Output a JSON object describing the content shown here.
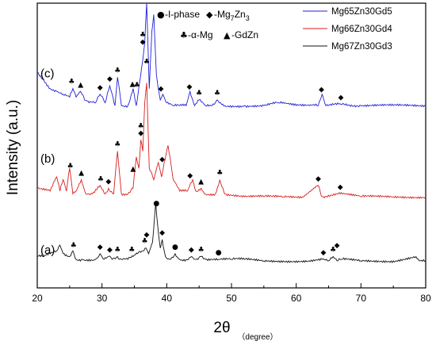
{
  "chart_data": {
    "type": "line",
    "xlabel": "2θ",
    "xlabel_unit": "（degree）",
    "ylabel": "Intensity (a.u.)",
    "xlim": [
      20,
      80
    ],
    "xticks": [
      "20",
      "30",
      "40",
      "50",
      "60",
      "70",
      "80"
    ],
    "grid": false,
    "legend_position": "top-right",
    "phase_legend": [
      {
        "symbol": "●",
        "label": "-I-phase"
      },
      {
        "symbol": "◆",
        "label": "-Mg7Zn3"
      },
      {
        "symbol": "♣",
        "label": "-α-Mg"
      },
      {
        "symbol": "▲",
        "label": "-GdZn"
      }
    ],
    "series": [
      {
        "name": "Mg65Zn30Gd5",
        "curve_label": "(c)",
        "color": "#1f1fd9",
        "baseline": 0.74,
        "x": [
          20,
          21,
          22,
          23,
          24,
          25,
          25.5,
          26,
          26.7,
          27.3,
          28,
          29,
          29.7,
          30.5,
          31.2,
          32,
          32.4,
          33,
          34,
          34.8,
          35.3,
          35.8,
          36.3,
          36.6,
          36.9,
          37.3,
          37.7,
          38.0,
          38.4,
          39,
          39.4,
          40,
          41,
          42,
          43,
          43.6,
          44.3,
          45,
          46,
          47,
          47.8,
          49,
          52,
          55,
          57.3,
          60,
          62,
          63.4,
          64.0,
          64.6,
          66.9,
          70,
          75,
          80
        ],
        "y": [
          0.76,
          0.73,
          0.7,
          0.69,
          0.68,
          0.67,
          0.7,
          0.67,
          0.69,
          0.66,
          0.65,
          0.65,
          0.68,
          0.65,
          0.71,
          0.64,
          0.74,
          0.64,
          0.64,
          0.7,
          0.64,
          0.72,
          0.8,
          0.86,
          1.0,
          0.7,
          0.9,
          0.96,
          0.75,
          0.66,
          0.68,
          0.65,
          0.64,
          0.64,
          0.64,
          0.69,
          0.64,
          0.66,
          0.64,
          0.64,
          0.66,
          0.64,
          0.64,
          0.64,
          0.65,
          0.64,
          0.64,
          0.64,
          0.68,
          0.64,
          0.645,
          0.64,
          0.64,
          0.64
        ]
      },
      {
        "name": "Mg66Zn30Gd4",
        "curve_label": "(b)",
        "color": "#d91f1f",
        "baseline": 0.44,
        "x": [
          20,
          22,
          23,
          23.5,
          24,
          24.5,
          25,
          25.5,
          26,
          26.8,
          27.5,
          28.5,
          29.7,
          30.5,
          31,
          31.8,
          32.4,
          33,
          34,
          34.8,
          35.3,
          35.7,
          36.0,
          36.3,
          36.6,
          36.9,
          37.3,
          38,
          38.7,
          39.2,
          39.6,
          40.2,
          41,
          42,
          43.2,
          44,
          44.5,
          45.3,
          46,
          47.5,
          48.2,
          49,
          52,
          55,
          58,
          61,
          63.4,
          64,
          66.8,
          70,
          75,
          80
        ],
        "y": [
          0.35,
          0.34,
          0.39,
          0.34,
          0.38,
          0.34,
          0.42,
          0.33,
          0.34,
          0.38,
          0.33,
          0.33,
          0.36,
          0.33,
          0.35,
          0.33,
          0.48,
          0.33,
          0.33,
          0.35,
          0.46,
          0.42,
          0.52,
          0.48,
          0.65,
          0.72,
          0.42,
          0.38,
          0.44,
          0.39,
          0.44,
          0.5,
          0.38,
          0.34,
          0.34,
          0.38,
          0.34,
          0.35,
          0.33,
          0.33,
          0.38,
          0.33,
          0.32,
          0.32,
          0.32,
          0.32,
          0.36,
          0.32,
          0.33,
          0.32,
          0.32,
          0.32
        ]
      },
      {
        "name": "Mg67Zn30Gd3",
        "curve_label": "(a)",
        "color": "#111111",
        "baseline": 0.12,
        "x": [
          20,
          21,
          22,
          23,
          23.5,
          24,
          25,
          25.5,
          26,
          27,
          28,
          29,
          29.7,
          30.3,
          31,
          31.6,
          32.4,
          33,
          34,
          34.8,
          35.5,
          36.3,
          36.8,
          37.2,
          37.8,
          38.3,
          38.6,
          39.0,
          39.3,
          39.8,
          40.5,
          41.3,
          42,
          43,
          43.8,
          44.5,
          45.3,
          46,
          47,
          48,
          50,
          52,
          55,
          58,
          60,
          62,
          64,
          65,
          65.7,
          66.3,
          67,
          70,
          75,
          78.5,
          79,
          80
        ],
        "y": [
          0.11,
          0.11,
          0.12,
          0.13,
          0.15,
          0.12,
          0.11,
          0.13,
          0.1,
          0.1,
          0.1,
          0.1,
          0.12,
          0.1,
          0.11,
          0.1,
          0.11,
          0.1,
          0.1,
          0.11,
          0.12,
          0.13,
          0.14,
          0.12,
          0.16,
          0.3,
          0.22,
          0.14,
          0.17,
          0.11,
          0.1,
          0.12,
          0.1,
          0.1,
          0.11,
          0.1,
          0.11,
          0.1,
          0.1,
          0.1,
          0.1,
          0.1,
          0.095,
          0.095,
          0.095,
          0.095,
          0.1,
          0.095,
          0.11,
          0.095,
          0.1,
          0.095,
          0.095,
          0.11,
          0.095,
          0.095
        ]
      }
    ],
    "markers": [
      {
        "series": 0,
        "x": 25.3,
        "symbol": "♣"
      },
      {
        "series": 0,
        "x": 26.7,
        "symbol": "▲"
      },
      {
        "series": 0,
        "x": 29.7,
        "symbol": "◆"
      },
      {
        "series": 0,
        "x": 31.2,
        "symbol": "◆"
      },
      {
        "series": 0,
        "x": 32.4,
        "symbol": "♣"
      },
      {
        "series": 0,
        "x": 34.7,
        "symbol": "▲"
      },
      {
        "series": 0,
        "x": 35.4,
        "symbol": "♣"
      },
      {
        "series": 0,
        "x": 36.3,
        "symbol": "◆"
      },
      {
        "series": 0,
        "x": 36.3,
        "symbol": "♣",
        "stack": 1
      },
      {
        "series": 0,
        "x": 36.6,
        "symbol": "▲",
        "stack": 2
      },
      {
        "series": 0,
        "x": 36.9,
        "symbol": "♣",
        "stack": 3
      },
      {
        "series": 0,
        "x": 39.1,
        "symbol": "◆"
      },
      {
        "series": 0,
        "x": 43.5,
        "symbol": "◆"
      },
      {
        "series": 0,
        "x": 45.0,
        "symbol": "♣"
      },
      {
        "series": 0,
        "x": 47.8,
        "symbol": "♣"
      },
      {
        "series": 0,
        "x": 63.9,
        "symbol": "◆"
      },
      {
        "series": 0,
        "x": 66.9,
        "symbol": "◆"
      },
      {
        "series": 1,
        "x": 25.1,
        "symbol": "♣"
      },
      {
        "series": 1,
        "x": 26.8,
        "symbol": "▲"
      },
      {
        "series": 1,
        "x": 29.8,
        "symbol": "♣"
      },
      {
        "series": 1,
        "x": 31.0,
        "symbol": "◆"
      },
      {
        "series": 1,
        "x": 32.4,
        "symbol": "♣"
      },
      {
        "series": 1,
        "x": 34.8,
        "symbol": "▲"
      },
      {
        "series": 1,
        "x": 36.0,
        "symbol": "◆"
      },
      {
        "series": 1,
        "x": 36.0,
        "symbol": "♣",
        "stack": 1
      },
      {
        "series": 1,
        "x": 36.9,
        "symbol": "♣",
        "stack": 2
      },
      {
        "series": 1,
        "x": 39.3,
        "symbol": "◆"
      },
      {
        "series": 1,
        "x": 43.6,
        "symbol": "◆"
      },
      {
        "series": 1,
        "x": 45.3,
        "symbol": "▲"
      },
      {
        "series": 1,
        "x": 48.2,
        "symbol": "♣"
      },
      {
        "series": 1,
        "x": 63.4,
        "symbol": "◆"
      },
      {
        "series": 1,
        "x": 66.8,
        "symbol": "◆"
      },
      {
        "series": 2,
        "x": 25.6,
        "symbol": "♣"
      },
      {
        "series": 2,
        "x": 29.7,
        "symbol": "◆"
      },
      {
        "series": 2,
        "x": 31.2,
        "symbol": "◆"
      },
      {
        "series": 2,
        "x": 32.4,
        "symbol": "♣"
      },
      {
        "series": 2,
        "x": 34.6,
        "symbol": "♣"
      },
      {
        "series": 2,
        "x": 36.6,
        "symbol": "♣"
      },
      {
        "series": 2,
        "x": 36.9,
        "symbol": "◆",
        "stack": 1
      },
      {
        "series": 2,
        "x": 38.4,
        "symbol": "●"
      },
      {
        "series": 2,
        "x": 39.3,
        "symbol": "◆"
      },
      {
        "series": 2,
        "x": 41.3,
        "symbol": "●"
      },
      {
        "series": 2,
        "x": 43.8,
        "symbol": "◆"
      },
      {
        "series": 2,
        "x": 45.3,
        "symbol": "♣"
      },
      {
        "series": 2,
        "x": 48.0,
        "symbol": "●"
      },
      {
        "series": 2,
        "x": 64.2,
        "symbol": "◆"
      },
      {
        "series": 2,
        "x": 65.7,
        "symbol": "♣"
      },
      {
        "series": 2,
        "x": 66.3,
        "symbol": "◆",
        "stack": 1
      }
    ]
  }
}
